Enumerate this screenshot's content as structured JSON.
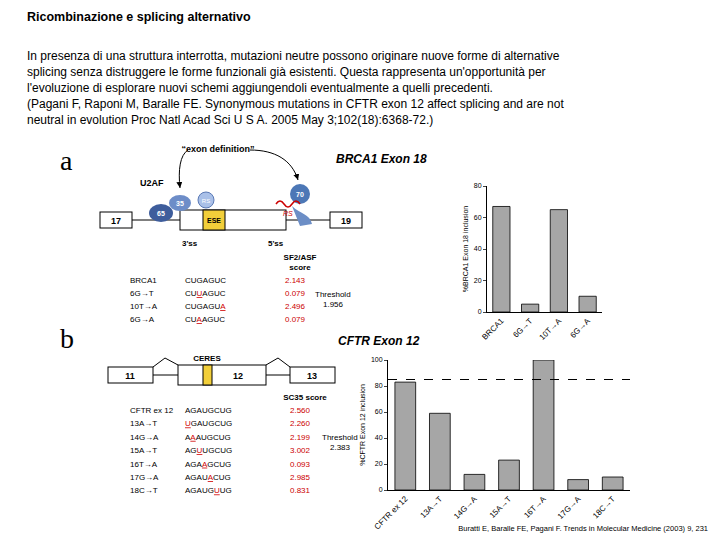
{
  "slide": {
    "title": "Ricombinazione e splicing alternativo",
    "paragraph": [
      "In presenza di una struttura interrotta, mutazioni neutre possono originare nuove forme di alternative",
      "splicing senza distruggere le forme funzionali già esistenti. Questa rappresenta un'opportunità per",
      "l'evoluzione di esplorare nuovi schemi aggiungendoli eventualmente a quelli precedenti.",
      "(Pagani F, Raponi M, Baralle FE. Synonymous mutations in CFTR exon 12 affect splicing and are not",
      "neutral in evolution Proc Natl Acad Sci U S A. 2005 May 3;102(18):6368-72.)"
    ],
    "credit": "Buratti E, Baralle FE, Pagani F. Trends in Molecular Medicine (2003) 9, 231"
  },
  "panels": [
    {
      "label": "a",
      "title": "BRCA1 Exon 18",
      "diagram": {
        "arrow_label": "“exon definition”",
        "factor": "U2AF",
        "subunits": [
          "35",
          "65"
        ],
        "element": "ESE",
        "sr_domain": "RS",
        "protein": "70",
        "exons": [
          "17",
          "19"
        ],
        "sites": [
          "3'ss",
          "5'ss"
        ]
      },
      "table": {
        "header": [
          "SF2/ASF",
          "score"
        ],
        "rows": [
          {
            "name": "BRCA1",
            "sequence": "CUGAGUC",
            "score": 2.143
          },
          {
            "name": "6G→T",
            "sequence": "CUUAGUC",
            "score": 0.079
          },
          {
            "name": "10T→A",
            "sequence": "CUGAGUA",
            "score": 2.496
          },
          {
            "name": "6G→A",
            "sequence": "CUAAGUC",
            "score": 0.079
          }
        ],
        "threshold_label": "Threshold",
        "threshold": 1.956
      }
    },
    {
      "label": "b",
      "title": "CFTR Exon 12",
      "diagram": {
        "element": "CERES",
        "exons": [
          "11",
          "12",
          "13"
        ]
      },
      "table": {
        "header": [
          "SC35 score"
        ],
        "rows": [
          {
            "name": "CFTR ex 12",
            "sequence": "AGAUGCUG",
            "score": 2.56
          },
          {
            "name": "13A→T",
            "sequence": "UGAUGCUG",
            "score": 2.26
          },
          {
            "name": "14G→A",
            "sequence": "AAAUGCUG",
            "score": 2.199
          },
          {
            "name": "15A→T",
            "sequence": "AGUUGCUG",
            "score": 3.002
          },
          {
            "name": "16T→A",
            "sequence": "AGAAGCUG",
            "score": 0.093
          },
          {
            "name": "17G→A",
            "sequence": "AGAUACUG",
            "score": 2.985
          },
          {
            "name": "18C→T",
            "sequence": "AGAUGUUG",
            "score": 0.831
          }
        ],
        "threshold_label": "Threshold",
        "threshold": 2.383
      }
    }
  ],
  "chart_data": [
    {
      "type": "bar",
      "categories": [
        "BRCA1",
        "6G→T",
        "10T→A",
        "6G→A"
      ],
      "values": [
        67,
        5,
        65,
        10
      ],
      "color": "#a6a6a6",
      "y_label": "%BRCA1 Exon 18 inclusion",
      "ylim": [
        0,
        80
      ],
      "yticks": [
        0,
        20,
        40,
        60,
        80
      ],
      "grid": false
    },
    {
      "type": "bar",
      "categories": [
        "CFTR ex 12",
        "13A→T",
        "14G→A",
        "15A→T",
        "16T→A",
        "17G→A",
        "18C→T"
      ],
      "values": [
        83,
        59,
        12,
        23,
        100,
        8,
        10
      ],
      "color": "#a6a6a6",
      "y_label": "%CFTR Exon 12 inclusion",
      "ylim": [
        0,
        100
      ],
      "yticks": [
        0,
        20,
        40,
        60,
        80,
        100
      ],
      "reference_line": 85,
      "grid": false
    }
  ]
}
